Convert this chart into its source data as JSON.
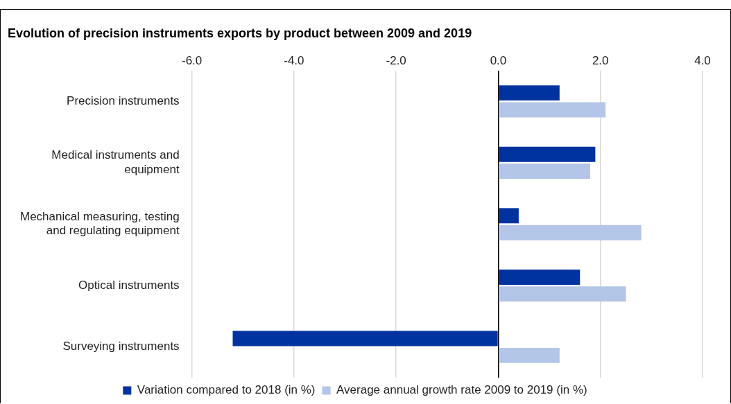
{
  "chart_data": {
    "type": "bar",
    "orientation": "horizontal",
    "title": "Evolution of precision instruments exports by product between 2009 and 2019",
    "categories": [
      "Precision instruments",
      "Medical instruments and equipment",
      "Mechanical measuring, testing and regulating equipment",
      "Optical instruments",
      "Surveying instruments"
    ],
    "series": [
      {
        "name": "Variation compared to 2018 (in %)",
        "color": "#0033a0",
        "values": [
          1.2,
          1.9,
          0.4,
          1.6,
          -5.2
        ]
      },
      {
        "name": "Average annual growth rate 2009 to 2019 (in %)",
        "color": "#b4c6e7",
        "values": [
          2.1,
          1.8,
          2.8,
          2.5,
          1.2
        ]
      }
    ],
    "xlim": [
      -6,
      4
    ],
    "xticks": [
      {
        "value": -6,
        "label": "-6.0"
      },
      {
        "value": -4,
        "label": "-4.0"
      },
      {
        "value": -2,
        "label": "-2.0"
      },
      {
        "value": 0,
        "label": "0.0"
      },
      {
        "value": 2,
        "label": "2.0"
      },
      {
        "value": 4,
        "label": "4.0"
      }
    ],
    "grid": "x",
    "legend": "bottom"
  }
}
